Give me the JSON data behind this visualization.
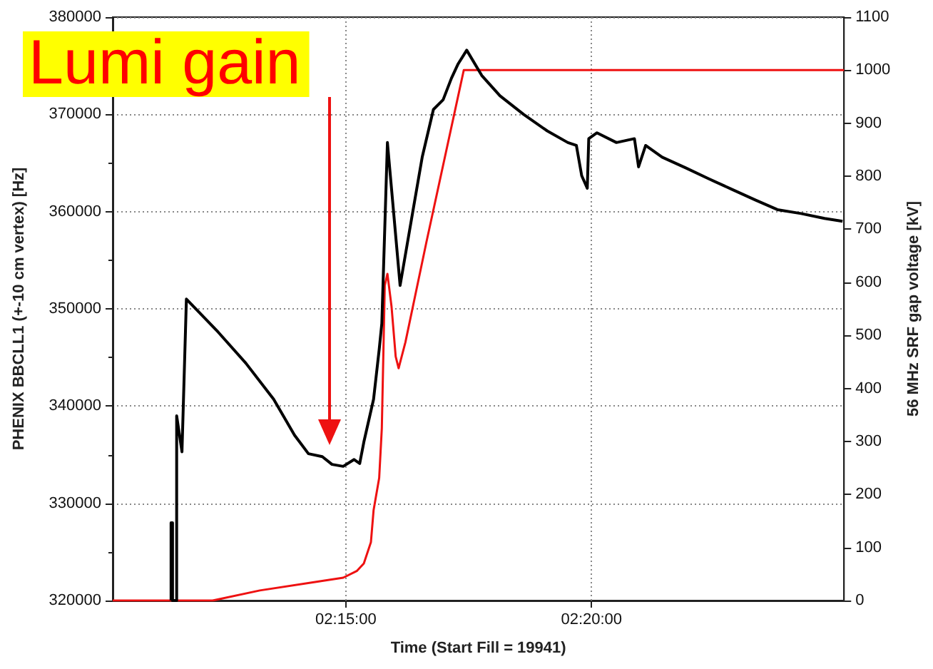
{
  "chart_data": {
    "type": "line",
    "xlabel": "Time (Start Fill = 19941)",
    "ylabel": "PHENIX BBCLL1 (+-10 cm vertex) [Hz]",
    "y2label": "56 MHz SRF gap voltage [kV]",
    "annotations": [
      "Lumi gain"
    ],
    "xlim": [
      2.1709,
      2.419
    ],
    "xticks": [
      {
        "value": 2.25,
        "label": "02:15:00"
      },
      {
        "value": 2.333333,
        "label": "02:20:00"
      }
    ],
    "ylim": [
      320000,
      380000
    ],
    "yticks": [
      320000,
      330000,
      340000,
      350000,
      360000,
      370000,
      380000
    ],
    "y2lim": [
      0,
      1100
    ],
    "y2ticks": [
      0,
      100,
      200,
      300,
      400,
      500,
      600,
      700,
      800,
      900,
      1000,
      1100
    ],
    "grid": true,
    "series": [
      {
        "color": "#000000",
        "x": [
          2.1907,
          2.1907,
          2.1912,
          2.1912,
          2.1926,
          2.1926,
          2.1944,
          2.1959,
          2.2067,
          2.2161,
          2.2255,
          2.2326,
          2.2373,
          2.242,
          2.2453,
          2.2491,
          2.2528,
          2.2547,
          2.2561,
          2.2594,
          2.2613,
          2.2622,
          2.2641,
          2.2684,
          2.2726,
          2.2759,
          2.2797,
          2.283,
          2.2858,
          2.2881,
          2.291,
          2.2961,
          2.3023,
          2.3103,
          2.3183,
          2.3253,
          2.3282,
          2.33,
          2.3319,
          2.3324,
          2.3352,
          2.3418,
          2.3479,
          2.3493,
          2.3517,
          2.3573,
          2.3653,
          2.3729,
          2.3809,
          2.3889,
          2.3964,
          2.4044,
          2.4124,
          2.4185
        ],
        "values": [
          320000,
          328000,
          328000,
          320000,
          320000,
          339000,
          335300,
          351000,
          347600,
          344400,
          340700,
          337000,
          335100,
          334800,
          334000,
          333800,
          334500,
          334100,
          336300,
          340700,
          345800,
          348500,
          367100,
          352400,
          359800,
          365600,
          370500,
          371500,
          373700,
          375200,
          376600,
          374000,
          371900,
          370000,
          368300,
          367100,
          366800,
          363700,
          362400,
          367500,
          368100,
          367100,
          367500,
          364600,
          366800,
          365600,
          364500,
          363400,
          362300,
          361200,
          360200,
          359800,
          359300,
          359000
        ]
      },
      {
        "color": "#ee1111",
        "axis": "y2",
        "x": [
          2.1709,
          2.2048,
          2.2208,
          2.2396,
          2.2491,
          2.2538,
          2.2561,
          2.2585,
          2.2594,
          2.2613,
          2.2622,
          2.2632,
          2.2641,
          2.2655,
          2.2669,
          2.2679,
          2.2702,
          2.2773,
          2.29,
          2.419
        ],
        "values": [
          0,
          0,
          19,
          35,
          43,
          56,
          70,
          110,
          170,
          231,
          325,
          594,
          616,
          554,
          460,
          438,
          487,
          675,
          1000,
          1000
        ]
      }
    ]
  }
}
